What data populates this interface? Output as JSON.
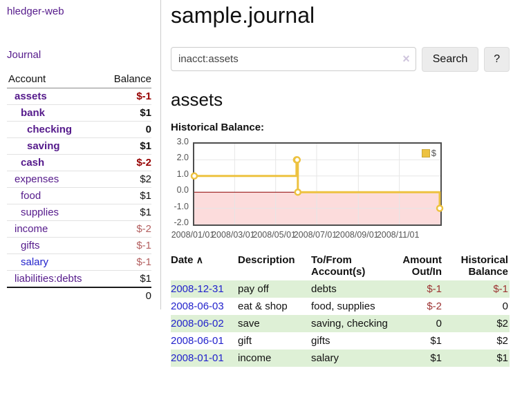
{
  "sidebar": {
    "brand": "hledger-web",
    "nav": {
      "journal": "Journal"
    },
    "accounts_table": {
      "headers": {
        "account": "Account",
        "balance": "Balance"
      },
      "rows": [
        {
          "name": "assets",
          "depth": 0,
          "bold": true,
          "balance": "$-1",
          "balance_type": "neg-strong",
          "link_color": "purple"
        },
        {
          "name": "bank",
          "depth": 1,
          "bold": true,
          "balance": "$1",
          "balance_type": "pos",
          "link_color": "purple"
        },
        {
          "name": "checking",
          "depth": 2,
          "bold": true,
          "balance": "0",
          "balance_type": "pos",
          "link_color": "purple"
        },
        {
          "name": "saving",
          "depth": 2,
          "bold": true,
          "balance": "$1",
          "balance_type": "pos",
          "link_color": "purple"
        },
        {
          "name": "cash",
          "depth": 1,
          "bold": true,
          "balance": "$-2",
          "balance_type": "neg-strong",
          "link_color": "purple"
        },
        {
          "name": "expenses",
          "depth": 0,
          "bold": false,
          "balance": "$2",
          "balance_type": "pos",
          "link_color": "purple"
        },
        {
          "name": "food",
          "depth": 1,
          "bold": false,
          "balance": "$1",
          "balance_type": "pos",
          "link_color": "purple"
        },
        {
          "name": "supplies",
          "depth": 1,
          "bold": false,
          "balance": "$1",
          "balance_type": "pos",
          "link_color": "purple"
        },
        {
          "name": "income",
          "depth": 0,
          "bold": false,
          "balance": "$-2",
          "balance_type": "neg-soft",
          "link_color": "purple"
        },
        {
          "name": "gifts",
          "depth": 1,
          "bold": false,
          "balance": "$-1",
          "balance_type": "neg-soft",
          "link_color": "purple"
        },
        {
          "name": "salary",
          "depth": 1,
          "bold": false,
          "balance": "$-1",
          "balance_type": "neg-soft",
          "link_color": "blue"
        },
        {
          "name": "liabilities:debts",
          "depth": 0,
          "bold": false,
          "balance": "$1",
          "balance_type": "pos",
          "link_color": "purple"
        }
      ],
      "total": "0"
    }
  },
  "main": {
    "title": "sample.journal",
    "search": {
      "value": "inacct:assets",
      "clear_icon": "×",
      "button": "Search",
      "help_button": "?"
    },
    "account_heading": "assets",
    "register": {
      "headers": {
        "date": "Date",
        "description": "Description",
        "accounts": "To/From Account(s)",
        "amount": "Amount Out/In",
        "balance": "Historical Balance"
      },
      "sort_icon": "∧",
      "rows": [
        {
          "date": "2008-12-31",
          "description": "pay off",
          "accounts": "debts",
          "amount": "$-1",
          "balance": "$-1"
        },
        {
          "date": "2008-06-03",
          "description": "eat & shop",
          "accounts": "food, supplies",
          "amount": "$-2",
          "balance": "0"
        },
        {
          "date": "2008-06-02",
          "description": "save",
          "accounts": "saving, checking",
          "amount": "0",
          "balance": "$2"
        },
        {
          "date": "2008-06-01",
          "description": "gift",
          "accounts": "gifts",
          "amount": "$1",
          "balance": "$2"
        },
        {
          "date": "2008-01-01",
          "description": "income",
          "accounts": "salary",
          "amount": "$1",
          "balance": "$1"
        }
      ]
    }
  },
  "chart_data": {
    "type": "line",
    "title": "Historical Balance:",
    "legend": "$",
    "style": "steps",
    "series": [
      {
        "name": "$",
        "color": "#edc240",
        "points": [
          [
            "2008-01-01",
            1
          ],
          [
            "2008-06-01",
            2
          ],
          [
            "2008-06-02",
            2
          ],
          [
            "2008-06-03",
            0
          ],
          [
            "2008-12-31",
            -1
          ]
        ]
      }
    ],
    "xrange": [
      "2008-01-01",
      "2009-01-01"
    ],
    "ylim": [
      -2,
      3
    ],
    "yticks": [
      "3.0",
      "2.0",
      "1.0",
      "0.0",
      "-1.0",
      "-2.0"
    ],
    "xticks": [
      "2008/01/01",
      "2008/03/01",
      "2008/05/01",
      "2008/07/01",
      "2008/09/01",
      "2008/11/01"
    ],
    "grid": true,
    "legend_position": "top-right",
    "negative_region_color": "#fcdcdc",
    "zero_line_color": "#8b0000"
  }
}
